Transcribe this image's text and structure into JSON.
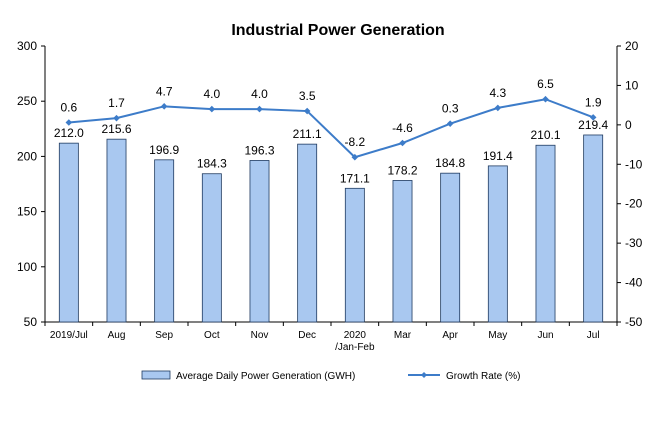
{
  "chart_data": {
    "type": "bar",
    "title": "Industrial Power Generation",
    "categories": [
      "2019/Jul",
      "Aug",
      "Sep",
      "Oct",
      "Nov",
      "Dec",
      "2020 /Jan-Feb",
      "Mar",
      "Apr",
      "May",
      "Jun",
      "Jul"
    ],
    "category_lines": [
      [
        "2019/Jul"
      ],
      [
        "Aug"
      ],
      [
        "Sep"
      ],
      [
        "Oct"
      ],
      [
        "Nov"
      ],
      [
        "Dec"
      ],
      [
        "2020",
        "/Jan-Feb"
      ],
      [
        "Mar"
      ],
      [
        "Apr"
      ],
      [
        "May"
      ],
      [
        "Jun"
      ],
      [
        "Jul"
      ]
    ],
    "series": [
      {
        "name": "Average Daily Power Generation (GWH)",
        "type": "bar",
        "axis": "left",
        "values": [
          212.0,
          215.6,
          196.9,
          184.3,
          196.3,
          211.1,
          171.1,
          178.2,
          184.8,
          191.4,
          210.1,
          219.4
        ],
        "labels": [
          "212.0",
          "215.6",
          "196.9",
          "184.3",
          "196.3",
          "211.1",
          "171.1",
          "178.2",
          "184.8",
          "191.4",
          "210.1",
          "219.4"
        ]
      },
      {
        "name": "Growth Rate (%)",
        "type": "line",
        "axis": "right",
        "values": [
          0.6,
          1.7,
          4.7,
          4.0,
          4.0,
          3.5,
          -8.2,
          -4.6,
          0.3,
          4.3,
          6.5,
          1.9
        ],
        "labels": [
          "0.6",
          "1.7",
          "4.7",
          "4.0",
          "4.0",
          "3.5",
          "-8.2",
          "-4.6",
          "0.3",
          "4.3",
          "6.5",
          "1.9"
        ]
      }
    ],
    "left_axis": {
      "ylim": [
        50,
        300
      ],
      "ticks": [
        300,
        250,
        200,
        150,
        100,
        50
      ]
    },
    "right_axis": {
      "ylim": [
        -50,
        20
      ],
      "ticks": [
        20,
        10,
        0,
        -10,
        -20,
        -30,
        -40,
        -50
      ]
    },
    "grid": false,
    "legend_position": "bottom",
    "colors": {
      "bar_fill": "#a9c8f0",
      "bar_stroke": "#1f3a60",
      "line": "#3d7cc9",
      "axis": "#000000"
    }
  }
}
